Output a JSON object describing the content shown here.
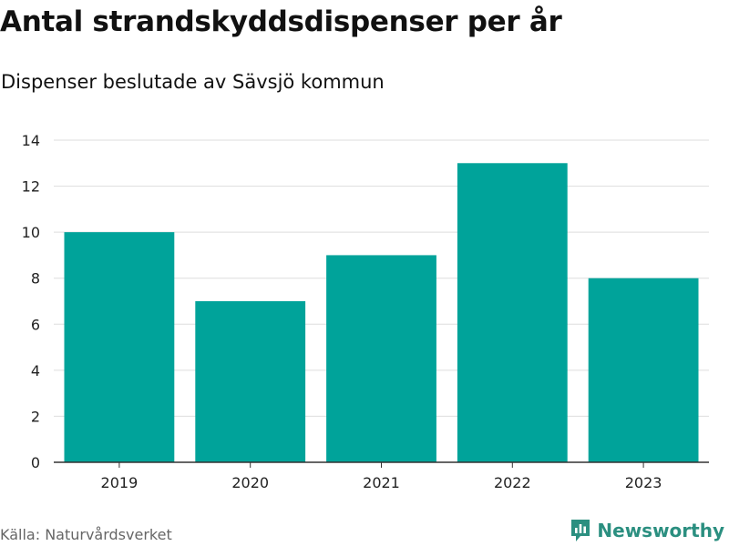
{
  "title": "Antal strandskyddsdispenser per år",
  "subtitle": "Dispenser beslutade av Sävsjö kommun",
  "source": "Källa: Naturvårdsverket",
  "brand": {
    "name": "Newsworthy",
    "icon": "newsworthy-logo-icon",
    "color": "#2b8f80"
  },
  "chart_data": {
    "type": "bar",
    "categories": [
      "2019",
      "2020",
      "2021",
      "2022",
      "2023"
    ],
    "values": [
      10,
      7,
      9,
      13,
      8
    ],
    "xlabel": "",
    "ylabel": "",
    "ylim": [
      0,
      14
    ],
    "yticks": [
      0,
      2,
      4,
      6,
      8,
      10,
      12,
      14
    ],
    "grid": true,
    "bar_color": "#00a39a",
    "grid_color": "#dddddd",
    "axis_color": "#333333"
  }
}
